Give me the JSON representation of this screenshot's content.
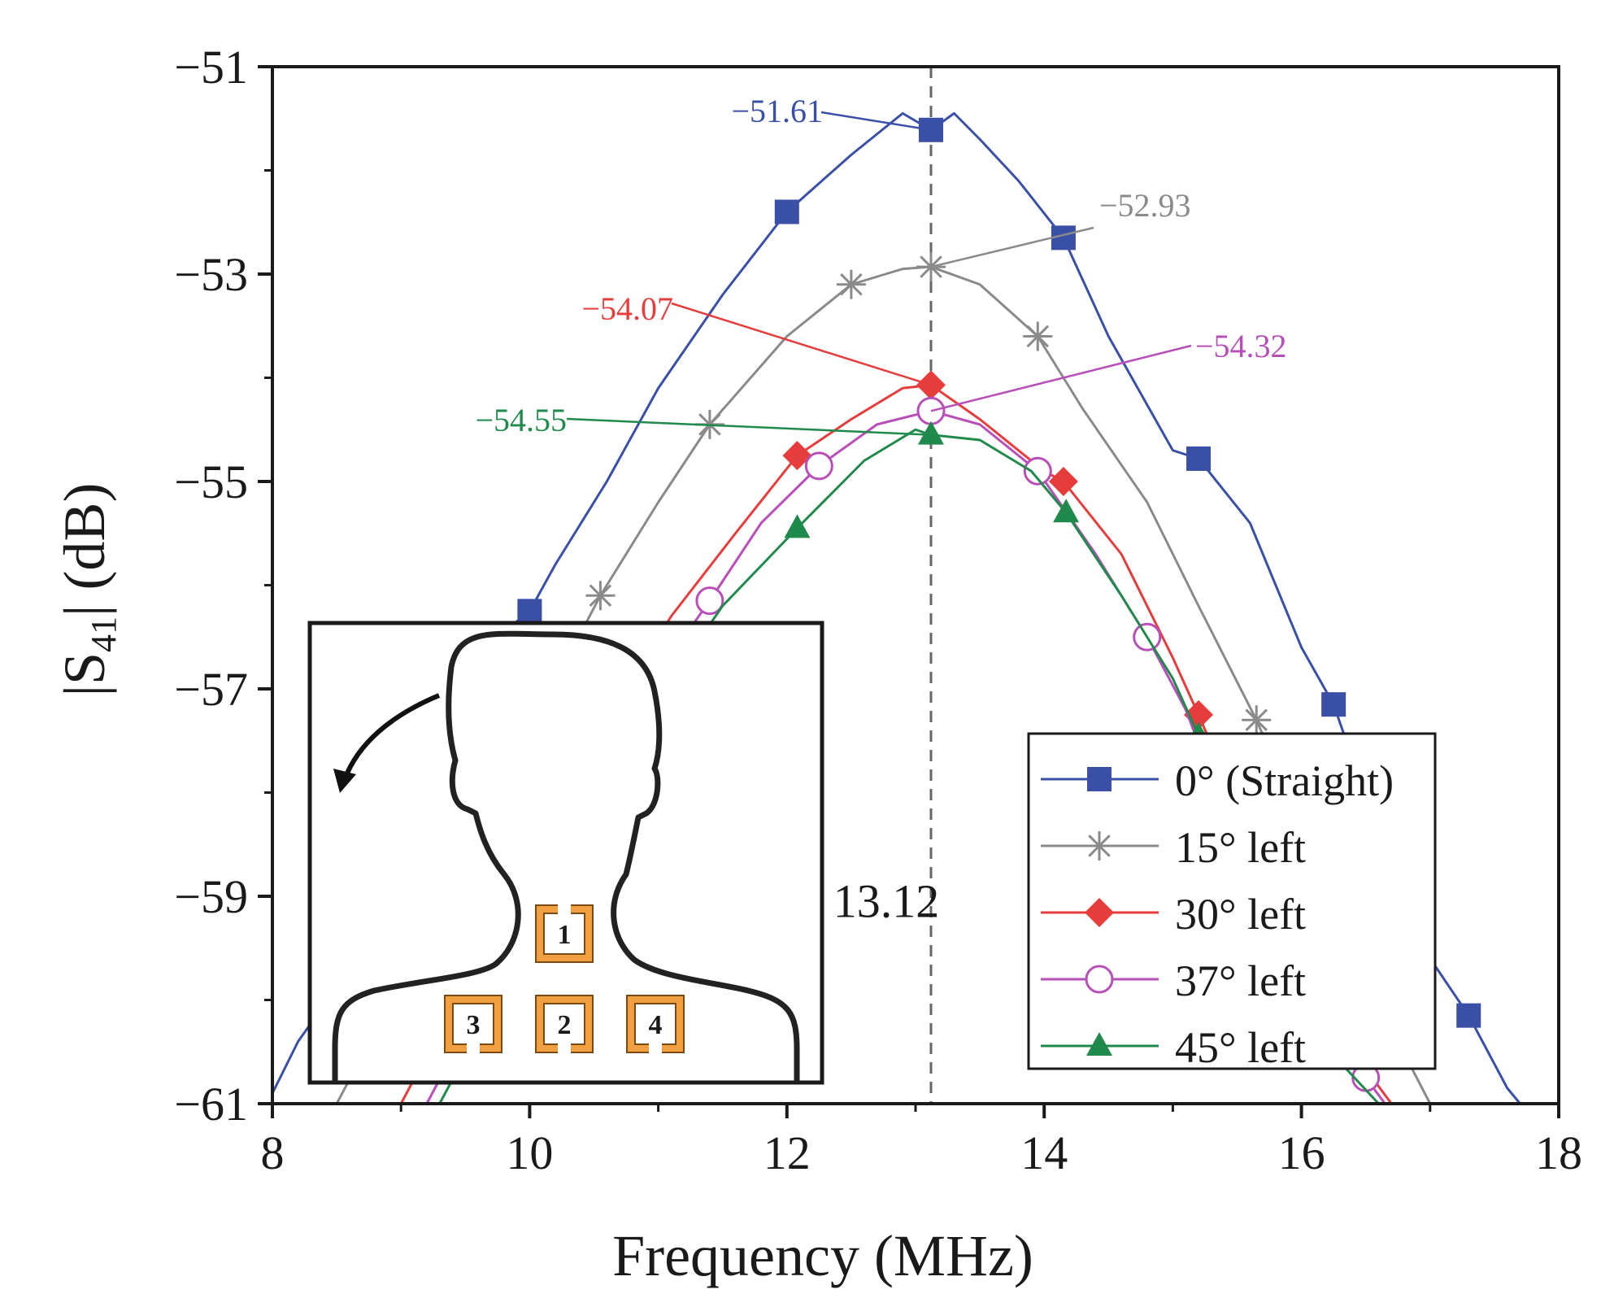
{
  "chart_data": {
    "type": "line",
    "xlabel": "Frequency (MHz)",
    "ylabel_parts": {
      "lead": "|S",
      "sub": "41",
      "tail": "| (dB)"
    },
    "xlim": [
      8,
      18
    ],
    "ylim": [
      -61,
      -51
    ],
    "x_ticks": [
      8,
      10,
      12,
      14,
      16,
      18
    ],
    "x_tick_labels": [
      "8",
      "10",
      "12",
      "14",
      "16",
      "18"
    ],
    "y_ticks": [
      -61,
      -59,
      -57,
      -55,
      -53,
      -51
    ],
    "y_tick_labels": [
      "−61",
      "−59",
      "−57",
      "−55",
      "−53",
      "−51"
    ],
    "grid": false,
    "legend_position": "bottom-right",
    "vline": {
      "x": 13.12,
      "label": "13.12"
    },
    "series": [
      {
        "name": "0° (Straight)",
        "color": "#3a4fa6",
        "marker": "square",
        "x": [
          8.0,
          8.2,
          8.6,
          9.0,
          9.4,
          9.8,
          10.0,
          10.2,
          10.6,
          11.0,
          11.5,
          12.0,
          12.5,
          12.9,
          13.12,
          13.3,
          13.5,
          13.8,
          14.15,
          14.5,
          15.0,
          15.2,
          15.6,
          16.0,
          16.25,
          16.6,
          17.0,
          17.3,
          17.6,
          17.7
        ],
        "y": [
          -60.9,
          -60.4,
          -59.7,
          -58.6,
          -57.5,
          -56.45,
          -56.25,
          -55.8,
          -55.0,
          -54.1,
          -53.2,
          -52.4,
          -51.85,
          -51.45,
          -51.61,
          -51.45,
          -51.7,
          -52.1,
          -52.65,
          -53.6,
          -54.7,
          -54.78,
          -55.4,
          -56.6,
          -57.15,
          -58.4,
          -59.6,
          -60.15,
          -60.85,
          -61.0
        ]
      },
      {
        "name": "15° left",
        "color": "#8a8a8a",
        "marker": "star",
        "x": [
          8.5,
          8.8,
          9.2,
          9.6,
          10.0,
          10.55,
          11.0,
          11.4,
          12.0,
          12.5,
          12.9,
          13.12,
          13.5,
          13.95,
          14.3,
          14.8,
          15.2,
          15.65,
          16.0,
          16.5,
          17.0
        ],
        "y": [
          -61.0,
          -60.3,
          -59.3,
          -58.4,
          -57.4,
          -56.1,
          -55.2,
          -54.45,
          -53.6,
          -53.1,
          -52.95,
          -52.93,
          -53.1,
          -53.6,
          -54.3,
          -55.2,
          -56.2,
          -57.3,
          -58.3,
          -59.8,
          -61.0
        ]
      },
      {
        "name": "30° left",
        "color": "#e63c3c",
        "marker": "diamond",
        "x": [
          9.0,
          9.3,
          9.7,
          10.1,
          10.6,
          11.1,
          11.6,
          12.08,
          12.5,
          12.9,
          13.12,
          13.5,
          14.0,
          14.15,
          14.6,
          15.0,
          15.2,
          15.6,
          16.0,
          16.4,
          16.7
        ],
        "y": [
          -61.0,
          -60.3,
          -59.3,
          -58.3,
          -57.3,
          -56.3,
          -55.5,
          -54.75,
          -54.4,
          -54.1,
          -54.07,
          -54.4,
          -54.9,
          -55.0,
          -55.7,
          -56.7,
          -57.25,
          -58.4,
          -59.5,
          -60.5,
          -61.0
        ]
      },
      {
        "name": "37° left",
        "color": "#b84fb8",
        "marker": "circle",
        "x": [
          9.2,
          9.5,
          9.9,
          10.3,
          10.8,
          11.4,
          11.8,
          12.25,
          12.7,
          13.12,
          13.5,
          13.95,
          14.4,
          14.8,
          15.1,
          15.5,
          15.9,
          16.3,
          16.5,
          16.65
        ],
        "y": [
          -61.0,
          -60.3,
          -59.3,
          -58.3,
          -57.2,
          -56.15,
          -55.4,
          -54.85,
          -54.45,
          -54.32,
          -54.45,
          -54.9,
          -55.7,
          -56.5,
          -57.2,
          -58.5,
          -59.6,
          -60.5,
          -60.75,
          -61.0
        ]
      },
      {
        "name": "45° left",
        "color": "#1f8a4c",
        "marker": "triangle",
        "x": [
          9.3,
          9.6,
          10.0,
          10.5,
          11.0,
          11.5,
          12.08,
          12.6,
          13.0,
          13.12,
          13.5,
          13.9,
          14.17,
          14.6,
          15.0,
          15.2,
          15.5,
          15.9,
          16.3,
          16.6
        ],
        "y": [
          -61.0,
          -60.3,
          -59.2,
          -58.1,
          -57.1,
          -56.2,
          -55.45,
          -54.8,
          -54.5,
          -54.55,
          -54.6,
          -54.9,
          -55.3,
          -56.1,
          -56.9,
          -57.45,
          -58.5,
          -59.7,
          -60.6,
          -61.0
        ]
      }
    ],
    "annotations": [
      {
        "text": "−51.61",
        "color": "#3a4fa6",
        "x": 13.12,
        "y": -51.61
      },
      {
        "text": "−52.93",
        "color": "#8a8a8a",
        "x": 13.12,
        "y": -52.93
      },
      {
        "text": "−54.07",
        "color": "#e63c3c",
        "x": 13.12,
        "y": -54.07
      },
      {
        "text": "−54.32",
        "color": "#b84fb8",
        "x": 13.12,
        "y": -54.32
      },
      {
        "text": "−54.55",
        "color": "#1f8a4c",
        "x": 13.12,
        "y": -54.55
      }
    ],
    "inset": {
      "description_labels": [
        "1",
        "2",
        "3",
        "4"
      ],
      "pad_color": "#f0a040"
    }
  }
}
